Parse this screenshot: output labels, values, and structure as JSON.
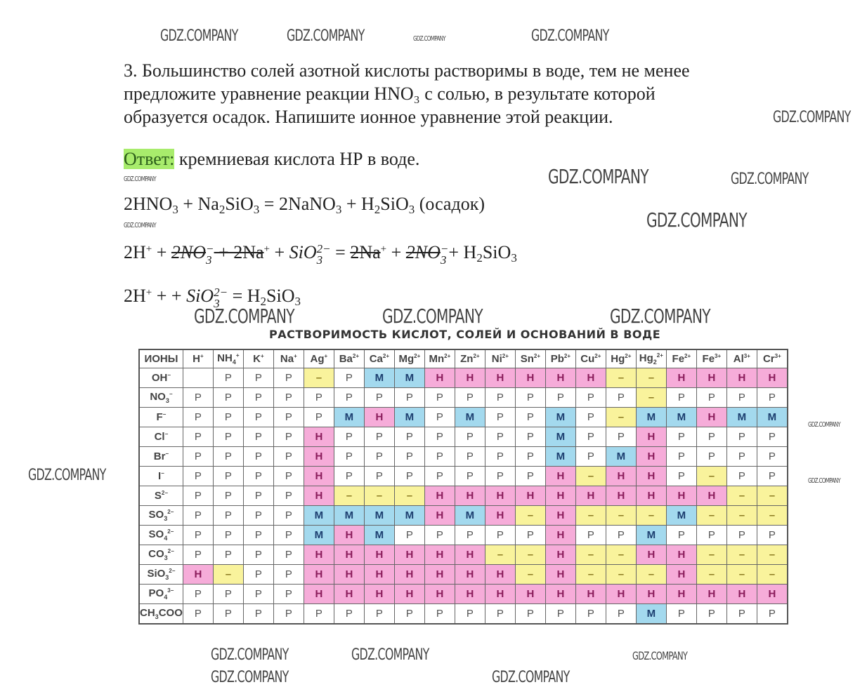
{
  "question": {
    "lines": [
      "3. Большинство солей азотной кислоты растворимы в воде, тем не менее",
      "предложите уравнение реакции HNO₃ с солью, в результате которой",
      "образуется осадок. Напишите ионное уравнение этой реакции."
    ]
  },
  "answer": {
    "label": "Ответ:",
    "text": " кремниевая кислота НР в воде."
  },
  "equations": [
    [
      {
        "t": "2HNO"
      },
      {
        "sub": "3"
      },
      {
        "t": " + Na"
      },
      {
        "sub": "2"
      },
      {
        "t": "SiO"
      },
      {
        "sub": "3"
      },
      {
        "t": " = 2NaNO"
      },
      {
        "sub": "3"
      },
      {
        "t": " + H"
      },
      {
        "sub": "2"
      },
      {
        "t": "SiO"
      },
      {
        "sub": "3"
      },
      {
        "t": " (осадок)"
      }
    ],
    [
      {
        "t": "2H"
      },
      {
        "sup": "+"
      },
      {
        "t": " + "
      },
      {
        "it": "2NO",
        "frac": [
          "−",
          "3"
        ],
        "strike": true
      },
      {
        "t": " + 2Na",
        "strike": true
      },
      {
        "sup": "+"
      },
      {
        "t": " + "
      },
      {
        "it": "SiO",
        "frac": [
          "2−",
          "3"
        ]
      },
      {
        "t": " = "
      },
      {
        "t": "2Na",
        "strike": true
      },
      {
        "sup": "+"
      },
      {
        "t": " + "
      },
      {
        "it": "2NO",
        "frac": [
          "−",
          "3"
        ],
        "strike": true
      },
      {
        "t": "+ H"
      },
      {
        "sub": "2"
      },
      {
        "t": "SiO"
      },
      {
        "sub": "3"
      }
    ],
    [
      {
        "t": "2H"
      },
      {
        "sup": "+"
      },
      {
        "t": " + + "
      },
      {
        "it": "SiO",
        "frac": [
          "2−",
          "3"
        ]
      },
      {
        "t": " = H"
      },
      {
        "sub": "2"
      },
      {
        "t": "SiO"
      },
      {
        "sub": "3"
      }
    ]
  ],
  "watermark": "GDZ.COMPANY",
  "table": {
    "title": "РАСТВОРИМОСТЬ КИСЛОТ, СОЛЕЙ И ОСНОВАНИЙ В ВОДЕ",
    "corner": "ИОНЫ",
    "cations": [
      [
        "H",
        "+",
        ""
      ],
      [
        "NH",
        "+",
        "4"
      ],
      [
        "K",
        "+",
        ""
      ],
      [
        "Na",
        "+",
        ""
      ],
      [
        "Ag",
        "+",
        ""
      ],
      [
        "Ba",
        "2+",
        ""
      ],
      [
        "Ca",
        "2+",
        ""
      ],
      [
        "Mg",
        "2+",
        ""
      ],
      [
        "Mn",
        "2+",
        ""
      ],
      [
        "Zn",
        "2+",
        ""
      ],
      [
        "Ni",
        "2+",
        ""
      ],
      [
        "Sn",
        "2+",
        ""
      ],
      [
        "Pb",
        "2+",
        ""
      ],
      [
        "Cu",
        "2+",
        ""
      ],
      [
        "Hg",
        "2+",
        ""
      ],
      [
        "Hg",
        "2+",
        "2"
      ],
      [
        "Fe",
        "2+",
        ""
      ],
      [
        "Fe",
        "3+",
        ""
      ],
      [
        "Al",
        "3+",
        ""
      ],
      [
        "Cr",
        "3+",
        ""
      ]
    ],
    "anions": [
      [
        "OH",
        "−",
        ""
      ],
      [
        "NO",
        "−",
        "3"
      ],
      [
        "F",
        "−",
        ""
      ],
      [
        "Cl",
        "−",
        ""
      ],
      [
        "Br",
        "−",
        ""
      ],
      [
        "I",
        "−",
        ""
      ],
      [
        "S",
        "2−",
        ""
      ],
      [
        "SO",
        "2−",
        "3"
      ],
      [
        "SO",
        "2−",
        "4"
      ],
      [
        "CO",
        "2−",
        "3"
      ],
      [
        "SiO",
        "2−",
        "3"
      ],
      [
        "PO",
        "3−",
        "4"
      ],
      [
        "CH",
        "",
        "3",
        "COO"
      ]
    ],
    "rows": [
      [
        "",
        "Р",
        "Р",
        "Р",
        "–",
        "Р",
        "М",
        "М",
        "Н",
        "Н",
        "Н",
        "Н",
        "Н",
        "Н",
        "–",
        "–",
        "Н",
        "Н",
        "Н",
        "Н"
      ],
      [
        "Р",
        "Р",
        "Р",
        "Р",
        "Р",
        "Р",
        "Р",
        "Р",
        "Р",
        "Р",
        "Р",
        "Р",
        "Р",
        "Р",
        "Р",
        "–",
        "Р",
        "Р",
        "Р",
        "Р"
      ],
      [
        "Р",
        "Р",
        "Р",
        "Р",
        "Р",
        "М",
        "Н",
        "М",
        "Р",
        "М",
        "Р",
        "Р",
        "М",
        "Р",
        "–",
        "М",
        "М",
        "Н",
        "М",
        "М"
      ],
      [
        "Р",
        "Р",
        "Р",
        "Р",
        "Н",
        "Р",
        "Р",
        "Р",
        "Р",
        "Р",
        "Р",
        "Р",
        "М",
        "Р",
        "Р",
        "Н",
        "Р",
        "Р",
        "Р",
        "Р"
      ],
      [
        "Р",
        "Р",
        "Р",
        "Р",
        "Н",
        "Р",
        "Р",
        "Р",
        "Р",
        "Р",
        "Р",
        "Р",
        "М",
        "Р",
        "М",
        "Н",
        "Р",
        "Р",
        "Р",
        "Р"
      ],
      [
        "Р",
        "Р",
        "Р",
        "Р",
        "Н",
        "Р",
        "Р",
        "Р",
        "Р",
        "Р",
        "Р",
        "Р",
        "Н",
        "–",
        "Н",
        "Н",
        "Р",
        "–",
        "Р",
        "Р"
      ],
      [
        "Р",
        "Р",
        "Р",
        "Р",
        "Н",
        "–",
        "–",
        "–",
        "Н",
        "Н",
        "Н",
        "Н",
        "Н",
        "Н",
        "Н",
        "Н",
        "Н",
        "Н",
        "–",
        "–"
      ],
      [
        "Р",
        "Р",
        "Р",
        "Р",
        "М",
        "М",
        "М",
        "М",
        "Н",
        "М",
        "Н",
        "–",
        "Н",
        "–",
        "–",
        "–",
        "М",
        "–",
        "–",
        "–"
      ],
      [
        "Р",
        "Р",
        "Р",
        "Р",
        "М",
        "Н",
        "М",
        "Р",
        "Р",
        "Р",
        "Р",
        "Р",
        "Н",
        "Р",
        "Р",
        "М",
        "Р",
        "Р",
        "Р",
        "Р"
      ],
      [
        "Р",
        "Р",
        "Р",
        "Р",
        "Н",
        "Н",
        "Н",
        "Н",
        "Н",
        "Н",
        "–",
        "–",
        "Н",
        "–",
        "–",
        "Н",
        "Н",
        "–",
        "–",
        "–"
      ],
      [
        "Н",
        "–",
        "Р",
        "Р",
        "Н",
        "Н",
        "Н",
        "Н",
        "Н",
        "Н",
        "Н",
        "–",
        "Н",
        "–",
        "–",
        "–",
        "Н",
        "–",
        "–",
        "–"
      ],
      [
        "Р",
        "Р",
        "Р",
        "Р",
        "Н",
        "Н",
        "Н",
        "Н",
        "Н",
        "Н",
        "Н",
        "Н",
        "Н",
        "Н",
        "Н",
        "Н",
        "Н",
        "Н",
        "Н",
        "Н"
      ],
      [
        "Р",
        "Р",
        "Р",
        "Р",
        "Р",
        "Р",
        "Р",
        "Р",
        "Р",
        "Р",
        "Р",
        "Р",
        "Р",
        "Р",
        "Р",
        "М",
        "Р",
        "Р",
        "Р",
        "Р"
      ]
    ],
    "colors": {
      "insoluble": "#f6acd9",
      "slightly": "#a3d9ee",
      "none": "#f9f39c"
    }
  }
}
